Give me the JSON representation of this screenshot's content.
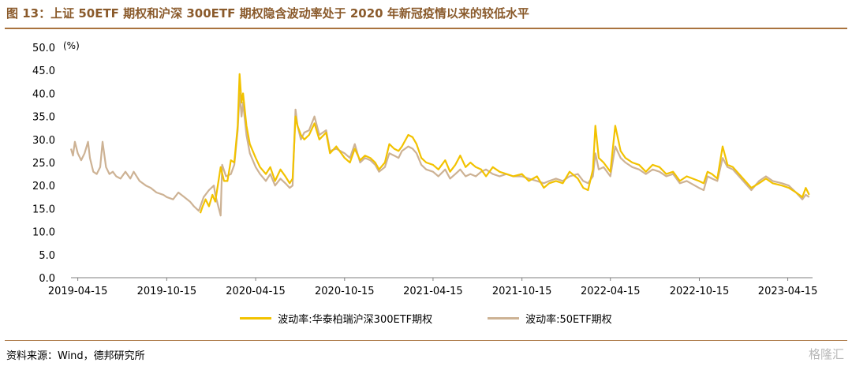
{
  "header": {
    "title": "图 13：上证 50ETF 期权和沪深 300ETF 期权隐含波动率处于 2020 年新冠疫情以来的较低水平"
  },
  "footer": {
    "source": "资料来源：Wind，德邦研究所",
    "watermark": "格隆汇"
  },
  "colors": {
    "accent": "#a9733e",
    "series_300": "#f2c200",
    "series_50": "#cdb294"
  },
  "chart_data": {
    "type": "line",
    "y_unit": "(%)",
    "ylim": [
      0,
      50
    ],
    "y_ticks": [
      "0.0",
      "5.0",
      "10.0",
      "15.0",
      "20.0",
      "25.0",
      "30.0",
      "35.0",
      "40.0",
      "45.0",
      "50.0"
    ],
    "x_ticks": [
      "2019-04-15",
      "2019-10-15",
      "2020-04-15",
      "2020-10-15",
      "2021-04-15",
      "2021-10-15",
      "2022-04-15",
      "2022-10-15",
      "2023-04-15"
    ],
    "grid": false,
    "legend_position": "bottom",
    "series": [
      {
        "name": "波动率:华泰柏瑞沪深300ETF期权",
        "color": "#f2c200",
        "points": [
          [
            "2019-12-23",
            14.0
          ],
          [
            "2019-12-28",
            15.5
          ],
          [
            "2020-01-03",
            17.0
          ],
          [
            "2020-01-10",
            15.5
          ],
          [
            "2020-01-17",
            18.0
          ],
          [
            "2020-01-23",
            16.5
          ],
          [
            "2020-02-03",
            24.0
          ],
          [
            "2020-02-10",
            21.0
          ],
          [
            "2020-02-17",
            21.0
          ],
          [
            "2020-02-24",
            25.5
          ],
          [
            "2020-03-02",
            25.0
          ],
          [
            "2020-03-09",
            33.0
          ],
          [
            "2020-03-13",
            44.2
          ],
          [
            "2020-03-17",
            38.0
          ],
          [
            "2020-03-20",
            40.0
          ],
          [
            "2020-03-27",
            33.0
          ],
          [
            "2020-04-03",
            29.0
          ],
          [
            "2020-04-15",
            26.0
          ],
          [
            "2020-04-24",
            24.0
          ],
          [
            "2020-05-06",
            22.5
          ],
          [
            "2020-05-15",
            24.0
          ],
          [
            "2020-05-25",
            21.0
          ],
          [
            "2020-06-05",
            23.5
          ],
          [
            "2020-06-15",
            22.0
          ],
          [
            "2020-06-24",
            20.5
          ],
          [
            "2020-06-30",
            21.5
          ],
          [
            "2020-07-06",
            35.0
          ],
          [
            "2020-07-10",
            33.0
          ],
          [
            "2020-07-17",
            31.0
          ],
          [
            "2020-07-24",
            30.0
          ],
          [
            "2020-08-03",
            31.0
          ],
          [
            "2020-08-14",
            33.5
          ],
          [
            "2020-08-24",
            30.0
          ],
          [
            "2020-09-07",
            31.5
          ],
          [
            "2020-09-15",
            27.0
          ],
          [
            "2020-09-28",
            28.5
          ],
          [
            "2020-10-15",
            26.0
          ],
          [
            "2020-10-26",
            25.0
          ],
          [
            "2020-11-05",
            28.0
          ],
          [
            "2020-11-16",
            25.5
          ],
          [
            "2020-11-26",
            26.5
          ],
          [
            "2020-12-07",
            26.0
          ],
          [
            "2020-12-17",
            25.0
          ],
          [
            "2020-12-25",
            23.5
          ],
          [
            "2021-01-06",
            25.0
          ],
          [
            "2021-01-15",
            29.0
          ],
          [
            "2021-01-25",
            28.0
          ],
          [
            "2021-02-03",
            27.5
          ],
          [
            "2021-02-10",
            28.5
          ],
          [
            "2021-02-23",
            31.0
          ],
          [
            "2021-03-04",
            30.5
          ],
          [
            "2021-03-12",
            29.0
          ],
          [
            "2021-03-22",
            26.0
          ],
          [
            "2021-04-01",
            25.0
          ],
          [
            "2021-04-15",
            24.5
          ],
          [
            "2021-04-26",
            23.5
          ],
          [
            "2021-05-10",
            25.5
          ],
          [
            "2021-05-20",
            23.0
          ],
          [
            "2021-05-31",
            24.5
          ],
          [
            "2021-06-10",
            26.5
          ],
          [
            "2021-06-21",
            24.0
          ],
          [
            "2021-07-01",
            25.0
          ],
          [
            "2021-07-12",
            24.0
          ],
          [
            "2021-07-23",
            23.5
          ],
          [
            "2021-08-02",
            22.0
          ],
          [
            "2021-08-16",
            24.0
          ],
          [
            "2021-08-30",
            23.0
          ],
          [
            "2021-09-13",
            22.5
          ],
          [
            "2021-09-27",
            22.0
          ],
          [
            "2021-10-15",
            22.5
          ],
          [
            "2021-10-29",
            21.0
          ],
          [
            "2021-11-15",
            22.0
          ],
          [
            "2021-11-29",
            19.5
          ],
          [
            "2021-12-10",
            20.5
          ],
          [
            "2021-12-24",
            21.0
          ],
          [
            "2022-01-07",
            20.5
          ],
          [
            "2022-01-21",
            23.0
          ],
          [
            "2022-02-07",
            21.5
          ],
          [
            "2022-02-18",
            19.5
          ],
          [
            "2022-02-28",
            19.0
          ],
          [
            "2022-03-10",
            23.5
          ],
          [
            "2022-03-15",
            33.0
          ],
          [
            "2022-03-22",
            26.0
          ],
          [
            "2022-04-01",
            25.0
          ],
          [
            "2022-04-15",
            23.0
          ],
          [
            "2022-04-25",
            33.0
          ],
          [
            "2022-05-06",
            27.5
          ],
          [
            "2022-05-16",
            26.0
          ],
          [
            "2022-05-30",
            25.0
          ],
          [
            "2022-06-13",
            24.5
          ],
          [
            "2022-06-27",
            23.0
          ],
          [
            "2022-07-11",
            24.5
          ],
          [
            "2022-07-25",
            24.0
          ],
          [
            "2022-08-08",
            22.5
          ],
          [
            "2022-08-22",
            23.0
          ],
          [
            "2022-09-05",
            21.0
          ],
          [
            "2022-09-19",
            22.0
          ],
          [
            "2022-10-14",
            21.0
          ],
          [
            "2022-10-24",
            20.5
          ],
          [
            "2022-11-01",
            23.0
          ],
          [
            "2022-11-10",
            22.5
          ],
          [
            "2022-11-21",
            21.5
          ],
          [
            "2022-12-02",
            28.5
          ],
          [
            "2022-12-12",
            24.5
          ],
          [
            "2022-12-23",
            24.0
          ],
          [
            "2023-01-09",
            22.0
          ],
          [
            "2023-01-30",
            19.5
          ],
          [
            "2023-02-15",
            20.5
          ],
          [
            "2023-03-01",
            21.5
          ],
          [
            "2023-03-15",
            20.5
          ],
          [
            "2023-04-03",
            20.0
          ],
          [
            "2023-04-17",
            19.5
          ],
          [
            "2023-05-02",
            18.5
          ],
          [
            "2023-05-15",
            17.5
          ],
          [
            "2023-05-22",
            19.5
          ],
          [
            "2023-05-29",
            18.0
          ]
        ]
      },
      {
        "name": "波动率:50ETF期权",
        "color": "#cdb294",
        "points": [
          [
            "2019-04-01",
            28.0
          ],
          [
            "2019-04-05",
            26.5
          ],
          [
            "2019-04-09",
            29.5
          ],
          [
            "2019-04-15",
            27.0
          ],
          [
            "2019-04-22",
            25.5
          ],
          [
            "2019-04-29",
            27.0
          ],
          [
            "2019-05-06",
            29.5
          ],
          [
            "2019-05-10",
            26.0
          ],
          [
            "2019-05-17",
            23.0
          ],
          [
            "2019-05-24",
            22.5
          ],
          [
            "2019-05-31",
            24.0
          ],
          [
            "2019-06-05",
            29.5
          ],
          [
            "2019-06-12",
            24.0
          ],
          [
            "2019-06-19",
            22.5
          ],
          [
            "2019-06-26",
            23.0
          ],
          [
            "2019-07-03",
            22.0
          ],
          [
            "2019-07-12",
            21.5
          ],
          [
            "2019-07-22",
            23.0
          ],
          [
            "2019-08-01",
            21.5
          ],
          [
            "2019-08-08",
            23.0
          ],
          [
            "2019-08-20",
            21.0
          ],
          [
            "2019-09-02",
            20.0
          ],
          [
            "2019-09-12",
            19.5
          ],
          [
            "2019-09-24",
            18.5
          ],
          [
            "2019-10-08",
            18.0
          ],
          [
            "2019-10-15",
            17.5
          ],
          [
            "2019-10-28",
            17.0
          ],
          [
            "2019-11-08",
            18.5
          ],
          [
            "2019-11-20",
            17.5
          ],
          [
            "2019-12-02",
            16.5
          ],
          [
            "2019-12-10",
            15.5
          ],
          [
            "2019-12-20",
            14.5
          ],
          [
            "2019-12-30",
            17.5
          ],
          [
            "2020-01-10",
            19.0
          ],
          [
            "2020-01-20",
            20.0
          ],
          [
            "2020-01-23",
            18.0
          ],
          [
            "2020-02-03",
            13.5
          ],
          [
            "2020-02-06",
            24.5
          ],
          [
            "2020-02-14",
            22.0
          ],
          [
            "2020-02-24",
            22.5
          ],
          [
            "2020-03-02",
            24.5
          ],
          [
            "2020-03-09",
            32.0
          ],
          [
            "2020-03-13",
            40.0
          ],
          [
            "2020-03-17",
            35.0
          ],
          [
            "2020-03-20",
            38.0
          ],
          [
            "2020-03-27",
            31.0
          ],
          [
            "2020-04-03",
            27.0
          ],
          [
            "2020-04-15",
            24.0
          ],
          [
            "2020-04-24",
            22.5
          ],
          [
            "2020-05-06",
            21.0
          ],
          [
            "2020-05-15",
            22.5
          ],
          [
            "2020-05-25",
            20.0
          ],
          [
            "2020-06-05",
            21.5
          ],
          [
            "2020-06-15",
            20.5
          ],
          [
            "2020-06-24",
            19.5
          ],
          [
            "2020-06-30",
            20.0
          ],
          [
            "2020-07-06",
            36.5
          ],
          [
            "2020-07-10",
            33.0
          ],
          [
            "2020-07-17",
            30.0
          ],
          [
            "2020-07-24",
            31.5
          ],
          [
            "2020-08-03",
            32.0
          ],
          [
            "2020-08-14",
            35.0
          ],
          [
            "2020-08-24",
            31.0
          ],
          [
            "2020-09-07",
            32.0
          ],
          [
            "2020-09-15",
            27.5
          ],
          [
            "2020-09-28",
            28.0
          ],
          [
            "2020-10-15",
            27.0
          ],
          [
            "2020-10-26",
            26.0
          ],
          [
            "2020-11-05",
            29.0
          ],
          [
            "2020-11-16",
            25.0
          ],
          [
            "2020-11-26",
            26.0
          ],
          [
            "2020-12-07",
            25.5
          ],
          [
            "2020-12-17",
            24.5
          ],
          [
            "2020-12-25",
            23.0
          ],
          [
            "2021-01-06",
            24.0
          ],
          [
            "2021-01-15",
            27.0
          ],
          [
            "2021-01-25",
            26.5
          ],
          [
            "2021-02-03",
            26.0
          ],
          [
            "2021-02-10",
            27.5
          ],
          [
            "2021-02-23",
            28.5
          ],
          [
            "2021-03-04",
            28.0
          ],
          [
            "2021-03-12",
            27.0
          ],
          [
            "2021-03-22",
            24.5
          ],
          [
            "2021-04-01",
            23.5
          ],
          [
            "2021-04-15",
            23.0
          ],
          [
            "2021-04-26",
            22.0
          ],
          [
            "2021-05-10",
            23.5
          ],
          [
            "2021-05-20",
            21.5
          ],
          [
            "2021-05-31",
            22.5
          ],
          [
            "2021-06-10",
            23.5
          ],
          [
            "2021-06-21",
            22.0
          ],
          [
            "2021-07-01",
            22.5
          ],
          [
            "2021-07-12",
            22.0
          ],
          [
            "2021-07-23",
            23.0
          ],
          [
            "2021-08-02",
            23.5
          ],
          [
            "2021-08-16",
            22.5
          ],
          [
            "2021-08-30",
            22.0
          ],
          [
            "2021-09-13",
            22.5
          ],
          [
            "2021-09-27",
            22.0
          ],
          [
            "2021-10-15",
            22.0
          ],
          [
            "2021-10-29",
            21.5
          ],
          [
            "2021-11-15",
            21.0
          ],
          [
            "2021-11-29",
            20.5
          ],
          [
            "2021-12-10",
            21.0
          ],
          [
            "2021-12-24",
            21.5
          ],
          [
            "2022-01-07",
            21.0
          ],
          [
            "2022-01-21",
            22.0
          ],
          [
            "2022-02-07",
            22.5
          ],
          [
            "2022-02-18",
            21.0
          ],
          [
            "2022-02-28",
            20.5
          ],
          [
            "2022-03-10",
            22.0
          ],
          [
            "2022-03-15",
            27.0
          ],
          [
            "2022-03-22",
            23.5
          ],
          [
            "2022-04-01",
            24.0
          ],
          [
            "2022-04-15",
            22.0
          ],
          [
            "2022-04-25",
            28.5
          ],
          [
            "2022-05-06",
            26.0
          ],
          [
            "2022-05-16",
            25.0
          ],
          [
            "2022-05-30",
            24.0
          ],
          [
            "2022-06-13",
            23.5
          ],
          [
            "2022-06-27",
            22.5
          ],
          [
            "2022-07-11",
            23.5
          ],
          [
            "2022-07-25",
            23.0
          ],
          [
            "2022-08-08",
            22.0
          ],
          [
            "2022-08-22",
            22.5
          ],
          [
            "2022-09-05",
            20.5
          ],
          [
            "2022-09-19",
            21.0
          ],
          [
            "2022-10-14",
            19.5
          ],
          [
            "2022-10-24",
            19.0
          ],
          [
            "2022-11-01",
            22.0
          ],
          [
            "2022-11-10",
            21.5
          ],
          [
            "2022-11-21",
            21.0
          ],
          [
            "2022-12-02",
            26.0
          ],
          [
            "2022-12-12",
            24.0
          ],
          [
            "2022-12-23",
            23.5
          ],
          [
            "2023-01-09",
            21.5
          ],
          [
            "2023-01-30",
            19.0
          ],
          [
            "2023-02-15",
            21.0
          ],
          [
            "2023-03-01",
            22.0
          ],
          [
            "2023-03-15",
            21.0
          ],
          [
            "2023-04-03",
            20.5
          ],
          [
            "2023-04-17",
            20.0
          ],
          [
            "2023-05-02",
            18.5
          ],
          [
            "2023-05-15",
            17.0
          ],
          [
            "2023-05-22",
            18.0
          ],
          [
            "2023-05-29",
            17.5
          ]
        ]
      }
    ]
  }
}
